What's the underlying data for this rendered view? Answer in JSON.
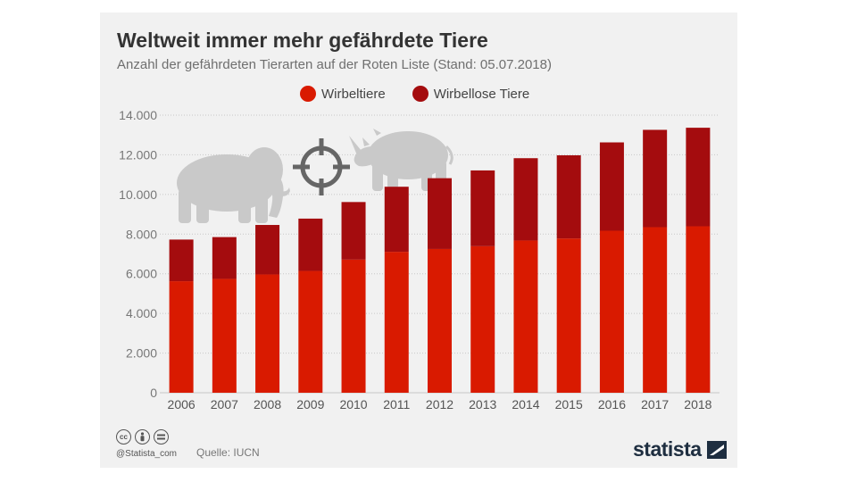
{
  "title": "Weltweit immer mehr gefährdete Tiere",
  "subtitle": "Anzahl der gefährdeten Tierarten auf der Roten Liste (Stand: 05.07.2018)",
  "footer": {
    "handle": "@Statista_com",
    "source": "Quelle: IUCN",
    "logo": "statista"
  },
  "icons": [
    "elephant-icon",
    "crosshair-icon",
    "rhino-icon",
    "cc-icon",
    "by-icon",
    "nd-icon",
    "statista-logo-icon"
  ],
  "colors": {
    "background": "#f1f1f1",
    "wirbeltiere": "#d91a00",
    "wirbellose": "#a40c0e",
    "silhouette": "#c9c9c9",
    "crosshair": "#666666"
  },
  "chart_data": {
    "type": "bar",
    "stacked": true,
    "categories": [
      "2006",
      "2007",
      "2008",
      "2009",
      "2010",
      "2011",
      "2012",
      "2013",
      "2014",
      "2015",
      "2016",
      "2017",
      "2018"
    ],
    "series": [
      {
        "name": "Wirbeltiere",
        "color": "#d91a00",
        "values": [
          5624,
          5742,
          5966,
          6143,
          6714,
          7108,
          7250,
          7390,
          7678,
          7781,
          8170,
          8351,
          8395
        ]
      },
      {
        "name": "Wirbellose Tiere",
        "color": "#a40c0e",
        "values": [
          2101,
          2108,
          2496,
          2639,
          2904,
          3281,
          3570,
          3822,
          4151,
          4194,
          4456,
          4908,
          4970
        ]
      }
    ],
    "ylim": [
      0,
      14000
    ],
    "yticks": [
      0,
      2000,
      4000,
      6000,
      8000,
      10000,
      12000,
      14000
    ],
    "ytick_labels": [
      "0",
      "2.000",
      "4.000",
      "6.000",
      "8.000",
      "10.000",
      "12.000",
      "14.000"
    ],
    "grid": true,
    "legend_position": "top-center"
  }
}
